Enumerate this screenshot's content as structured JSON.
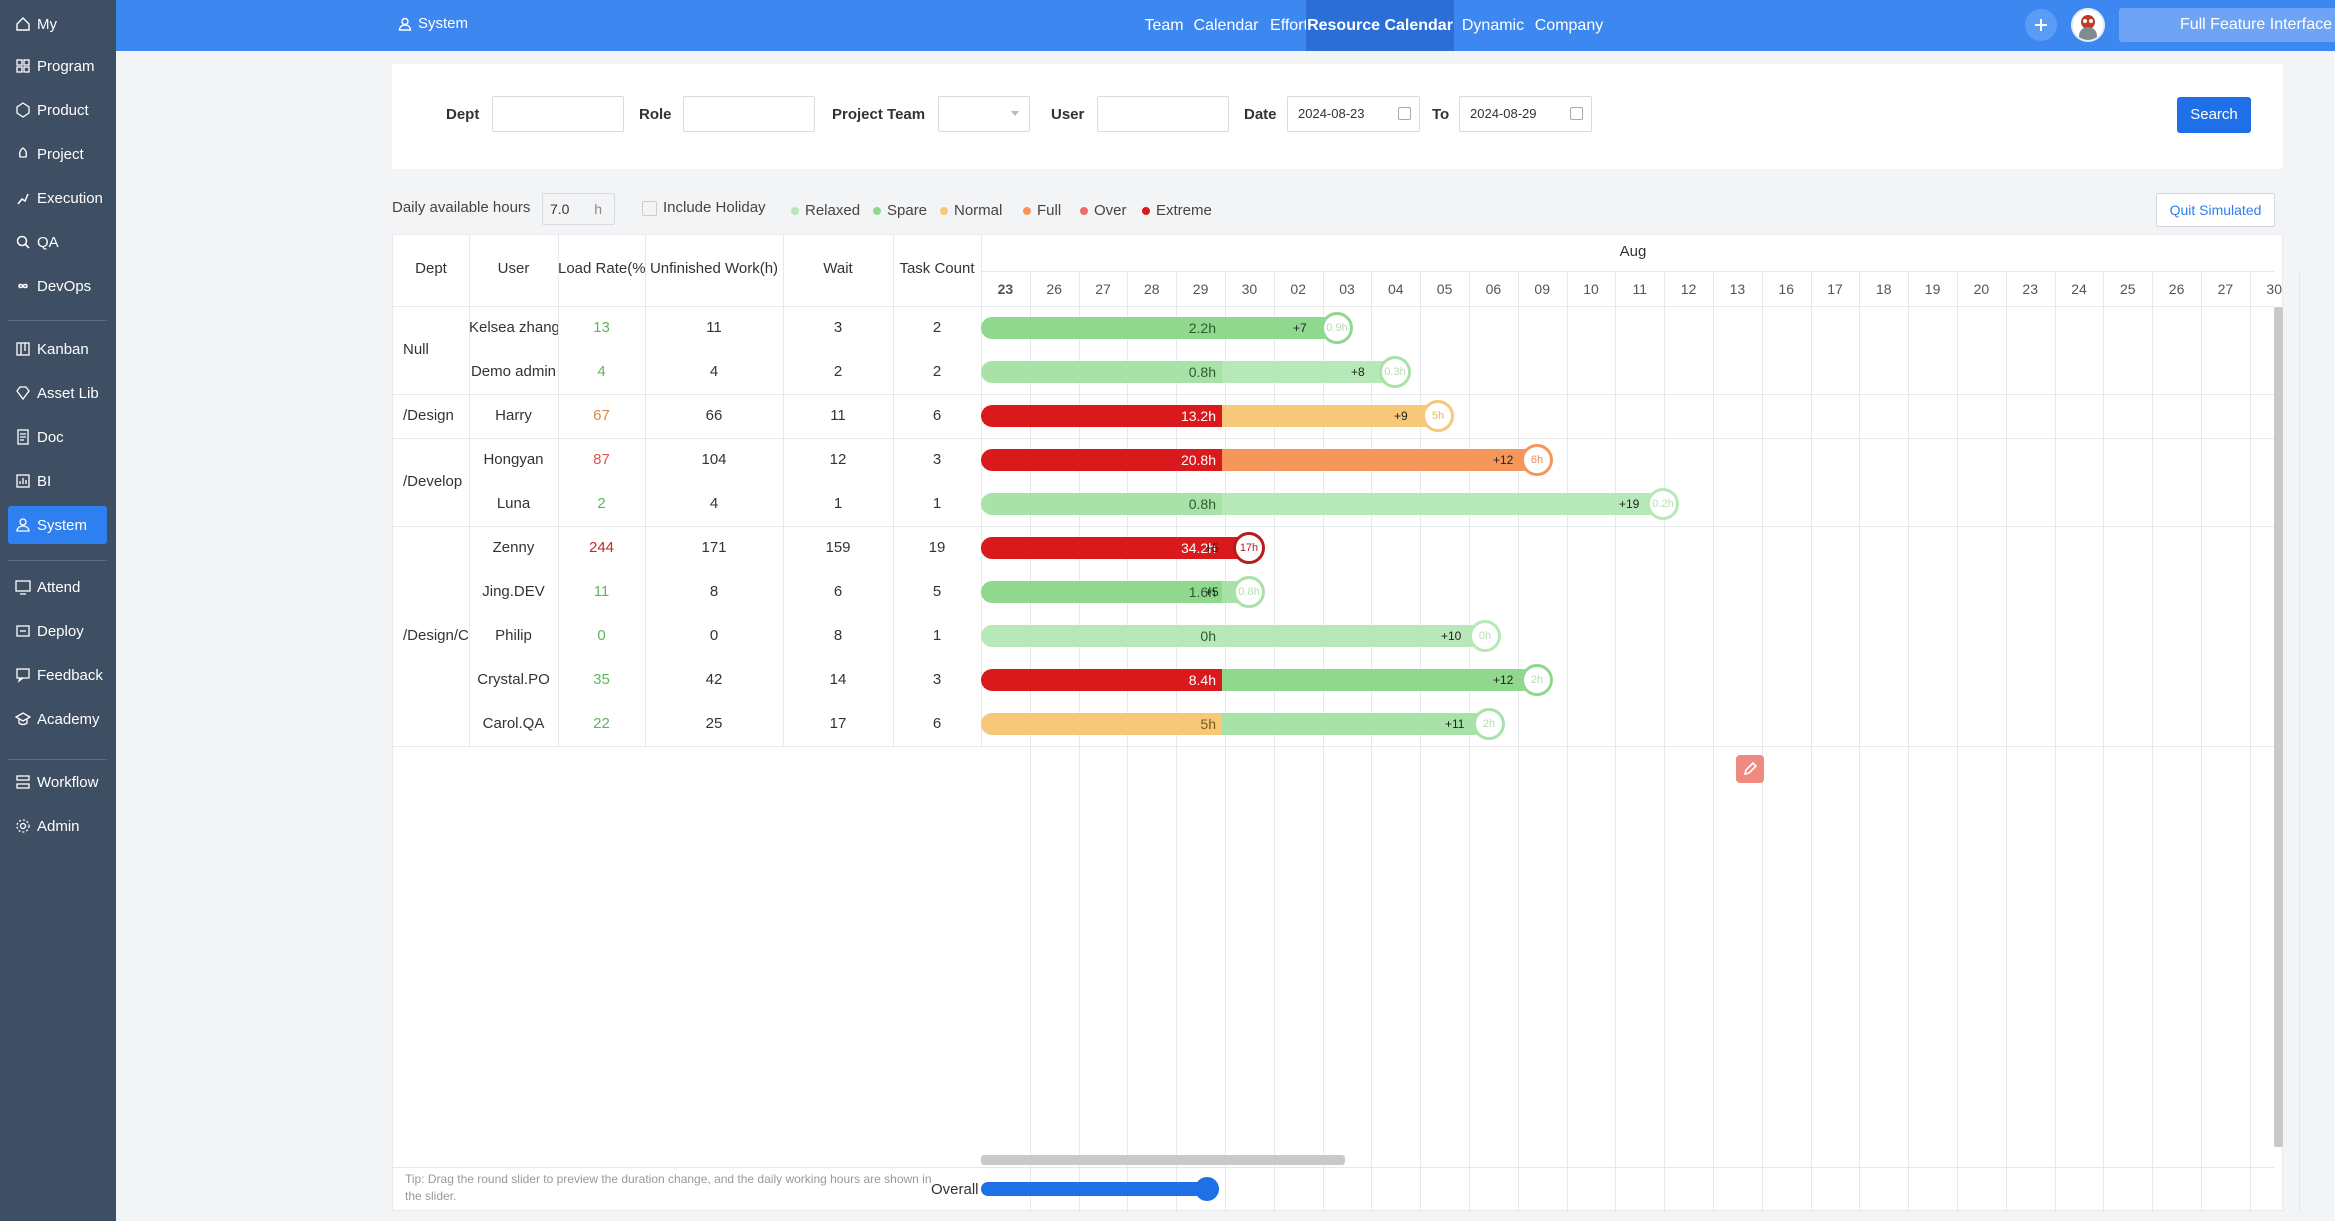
{
  "sidebar": {
    "items": [
      {
        "label": "My",
        "icon": "home-icon"
      },
      {
        "label": "Program",
        "icon": "grid-icon"
      },
      {
        "label": "Product",
        "icon": "product-icon"
      },
      {
        "label": "Project",
        "icon": "project-icon"
      },
      {
        "label": "Execution",
        "icon": "run-icon"
      },
      {
        "label": "QA",
        "icon": "search-icon"
      },
      {
        "label": "DevOps",
        "icon": "infinity-icon"
      },
      {
        "label": "Kanban",
        "icon": "kanban-icon"
      },
      {
        "label": "Asset Lib",
        "icon": "diamond-icon"
      },
      {
        "label": "Doc",
        "icon": "doc-icon"
      },
      {
        "label": "BI",
        "icon": "chart-icon"
      },
      {
        "label": "System",
        "icon": "user-icon"
      },
      {
        "label": "Attend",
        "icon": "monitor-icon"
      },
      {
        "label": "Deploy",
        "icon": "deploy-icon"
      },
      {
        "label": "Feedback",
        "icon": "feedback-icon"
      },
      {
        "label": "Academy",
        "icon": "academy-icon"
      },
      {
        "label": "Workflow",
        "icon": "workflow-icon"
      },
      {
        "label": "Admin",
        "icon": "gear-icon"
      }
    ]
  },
  "topbar": {
    "section": "System",
    "tabs": [
      "Team",
      "Calendar",
      "Effort",
      "Resource Calendar",
      "Dynamic",
      "Company"
    ],
    "active_tab": "Resource Calendar",
    "full_button": "Full Feature Interface"
  },
  "filter": {
    "dept_label": "Dept",
    "role_label": "Role",
    "team_label": "Project Team",
    "user_label": "User",
    "date_label": "Date",
    "to_label": "To",
    "date_from": "2024-08-23",
    "date_to": "2024-08-29",
    "search_button": "Search"
  },
  "options": {
    "hours_label": "Daily available hours",
    "hours_value": "7.0",
    "hours_unit": "h",
    "holiday_label": "Include Holiday",
    "legend": [
      {
        "label": "Relaxed",
        "color": "#b7e8b8"
      },
      {
        "label": "Spare",
        "color": "#8fd88e"
      },
      {
        "label": "Normal",
        "color": "#f7c77a"
      },
      {
        "label": "Full",
        "color": "#f5965a"
      },
      {
        "label": "Over",
        "color": "#ef6b6b"
      },
      {
        "label": "Extreme",
        "color": "#d9191c"
      }
    ],
    "quit_button": "Quit Simulated"
  },
  "table": {
    "headers": [
      "Dept",
      "User",
      "Load Rate(%",
      "Unfinished Work(h)",
      "Wait",
      "Task Count"
    ],
    "month": "Aug",
    "days": [
      "23",
      "26",
      "27",
      "28",
      "29",
      "30",
      "02",
      "03",
      "04",
      "05",
      "06",
      "09",
      "10",
      "11",
      "12",
      "13",
      "16",
      "17",
      "18",
      "19",
      "20",
      "23",
      "24",
      "25",
      "26",
      "27",
      "30"
    ],
    "dept_groups": [
      {
        "label": "Null"
      },
      {
        "label": "/Design"
      },
      {
        "label": "/Develop"
      },
      {
        "label": "/Design/C"
      }
    ],
    "rows": [
      {
        "user": "Kelsea zhang",
        "load": "13",
        "load_color": "#5cb85c",
        "unfinished": "11",
        "wait": "3",
        "tasks": "2",
        "first_label": "2.2h",
        "plus": "+7",
        "knob": "0.9h",
        "first_color": "#8fd88e",
        "rest_color": "#8fd88e",
        "knob_color": "#8fd88e",
        "knob_text_color": "#b6dcb6"
      },
      {
        "user": "Demo admin",
        "load": "4",
        "load_color": "#5cb85c",
        "unfinished": "4",
        "wait": "2",
        "tasks": "2",
        "first_label": "0.8h",
        "plus": "+8",
        "knob": "0.3h",
        "first_color": "#a9e2a9",
        "rest_color": "#b7e8b8",
        "knob_color": "#a9e2a9",
        "knob_text_color": "#b6dcb6"
      },
      {
        "user": "Harry",
        "load": "67",
        "load_color": "#e0893b",
        "unfinished": "66",
        "wait": "11",
        "tasks": "6",
        "first_label": "13.2h",
        "plus": "+9",
        "knob": "5h",
        "first_color": "#d9191c",
        "rest_color": "#f7c77a",
        "knob_color": "#f7c77a",
        "knob_text_color": "#e4b56a"
      },
      {
        "user": "Hongyan",
        "load": "87",
        "load_color": "#d9534f",
        "unfinished": "104",
        "wait": "12",
        "tasks": "3",
        "first_label": "20.8h",
        "plus": "+12",
        "knob": "6h",
        "first_color": "#d9191c",
        "rest_color": "#f5965a",
        "knob_color": "#f5965a",
        "knob_text_color": "#e08a52"
      },
      {
        "user": "Luna",
        "load": "2",
        "load_color": "#5cb85c",
        "unfinished": "4",
        "wait": "1",
        "tasks": "1",
        "first_label": "0.8h",
        "plus": "+19",
        "knob": "0.2h",
        "first_color": "#a9e2a9",
        "rest_color": "#b7e8b8",
        "knob_color": "#b7e8b8",
        "knob_text_color": "#b6dcb6"
      },
      {
        "user": "Zenny",
        "load": "244",
        "load_color": "#c62828",
        "unfinished": "171",
        "wait": "159",
        "tasks": "19",
        "first_label": "34.2h",
        "plus": "+5",
        "knob": "17h",
        "first_color": "#d9191c",
        "rest_color": "#d9191c",
        "knob_color": "#b71c1c",
        "knob_text_color": "#b71c1c"
      },
      {
        "user": "Jing.DEV",
        "load": "11",
        "load_color": "#5cb85c",
        "unfinished": "8",
        "wait": "6",
        "tasks": "5",
        "first_label": "1.6h",
        "plus": "+5",
        "knob": "0.8h",
        "first_color": "#8fd88e",
        "rest_color": "#a9e2a9",
        "knob_color": "#a9e2a9",
        "knob_text_color": "#b6dcb6"
      },
      {
        "user": "Philip",
        "load": "0",
        "load_color": "#5cb85c",
        "unfinished": "0",
        "wait": "8",
        "tasks": "1",
        "first_label": "0h",
        "plus": "+10",
        "knob": "0h",
        "first_color": "#b7e8b8",
        "rest_color": "#b7e8b8",
        "knob_color": "#b7e8b8",
        "knob_text_color": "#b6dcb6"
      },
      {
        "user": "Crystal.PO",
        "load": "35",
        "load_color": "#5cb85c",
        "unfinished": "42",
        "wait": "14",
        "tasks": "3",
        "first_label": "8.4h",
        "plus": "+12",
        "knob": "2h",
        "first_color": "#d9191c",
        "rest_color": "#8fd88e",
        "knob_color": "#8fd88e",
        "knob_text_color": "#b6dcb6"
      },
      {
        "user": "Carol.QA",
        "load": "22",
        "load_color": "#5cb85c",
        "unfinished": "25",
        "wait": "17",
        "tasks": "6",
        "first_label": "5h",
        "plus": "+11",
        "knob": "2h",
        "first_color": "#f7c77a",
        "rest_color": "#a9e2a9",
        "knob_color": "#a9e2a9",
        "knob_text_color": "#b6dcb6"
      }
    ],
    "tip": "Tip: Drag the round slider to preview the duration change, and the daily working hours are shown in the slider.",
    "overall_label": "Overall"
  }
}
